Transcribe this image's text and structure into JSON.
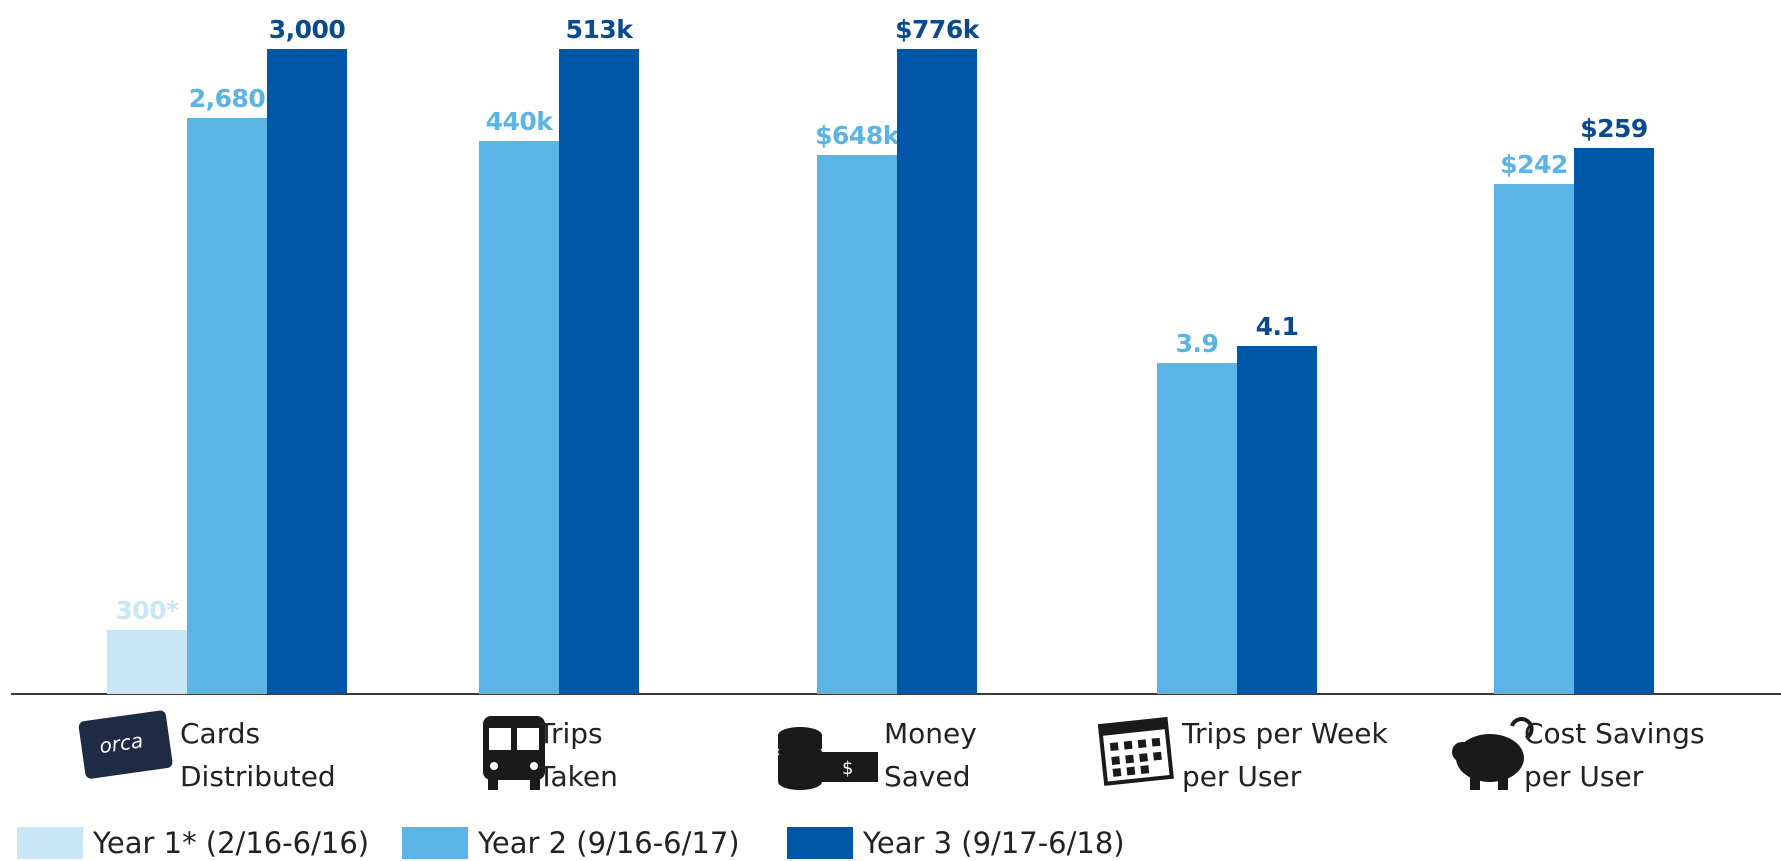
{
  "chart_data": {
    "type": "bar",
    "categories": [
      [
        "Cards",
        "Distributed"
      ],
      [
        "Trips",
        "Taken"
      ],
      [
        "Money",
        "Saved"
      ],
      [
        "Trips per Week",
        "per User"
      ],
      [
        "Cost Savings",
        "per User"
      ]
    ],
    "group_ylim": [
      [
        0,
        3000
      ],
      [
        0,
        513000
      ],
      [
        0,
        776000
      ],
      [
        0,
        7.6
      ],
      [
        0,
        306
      ]
    ],
    "series": [
      {
        "name": "Year 1* (2/16-6/16)",
        "color": "#c9e6f6",
        "label_color": "#c9e6f6",
        "values": [
          300,
          null,
          null,
          null,
          null
        ],
        "value_labels": [
          "300*",
          null,
          null,
          null,
          null
        ]
      },
      {
        "name": "Year 2 (9/16-6/17)",
        "color": "#5bb4e5",
        "label_color": "#5bb4e5",
        "values": [
          2680,
          440000,
          648000,
          3.9,
          242
        ],
        "value_labels": [
          "2,680",
          "440k",
          "$648k",
          "3.9",
          "$242"
        ]
      },
      {
        "name": "Year 3 (9/17-6/18)",
        "color": "#0057a8",
        "label_color": "#0b4a8c",
        "values": [
          3000,
          513000,
          776000,
          4.1,
          259
        ],
        "value_labels": [
          "3,000",
          "513k",
          "$776k",
          "4.1",
          "$259"
        ]
      }
    ]
  }
}
